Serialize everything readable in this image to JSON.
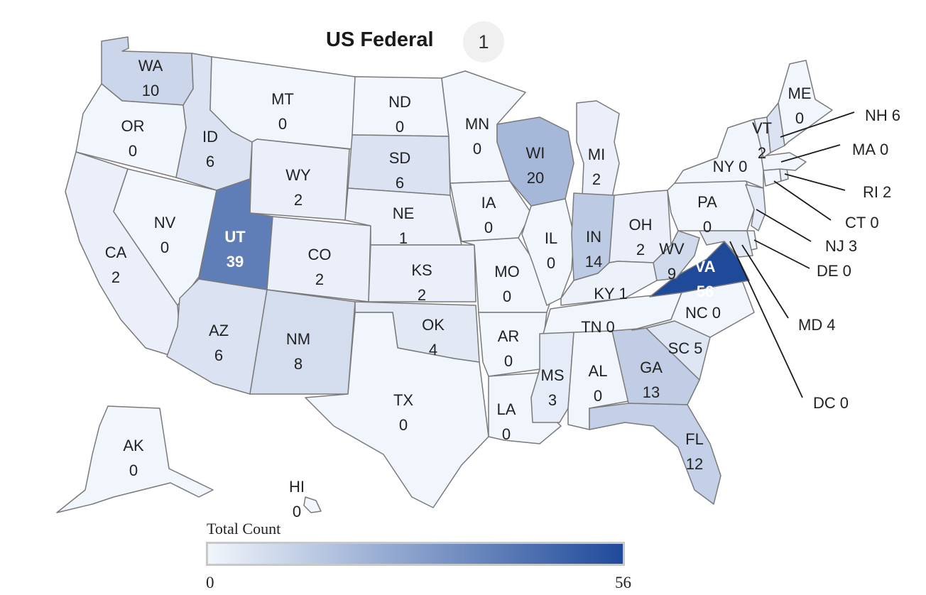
{
  "title": "US Federal",
  "badge": "1",
  "legend": {
    "title": "Total Count",
    "min": "0",
    "max": "56",
    "color_low": "#f1f5fc",
    "color_high": "#1f4a9a"
  },
  "states": [
    {
      "abbr": "WA",
      "value": "10"
    },
    {
      "abbr": "OR",
      "value": "0"
    },
    {
      "abbr": "CA",
      "value": "2"
    },
    {
      "abbr": "NV",
      "value": "0"
    },
    {
      "abbr": "ID",
      "value": "6"
    },
    {
      "abbr": "MT",
      "value": "0"
    },
    {
      "abbr": "WY",
      "value": "2"
    },
    {
      "abbr": "UT",
      "value": "39"
    },
    {
      "abbr": "AZ",
      "value": "6"
    },
    {
      "abbr": "CO",
      "value": "2"
    },
    {
      "abbr": "NM",
      "value": "8"
    },
    {
      "abbr": "ND",
      "value": "0"
    },
    {
      "abbr": "SD",
      "value": "6"
    },
    {
      "abbr": "NE",
      "value": "1"
    },
    {
      "abbr": "KS",
      "value": "2"
    },
    {
      "abbr": "OK",
      "value": "4"
    },
    {
      "abbr": "TX",
      "value": "0"
    },
    {
      "abbr": "MN",
      "value": "0"
    },
    {
      "abbr": "IA",
      "value": "0"
    },
    {
      "abbr": "MO",
      "value": "0"
    },
    {
      "abbr": "AR",
      "value": "0"
    },
    {
      "abbr": "LA",
      "value": "0"
    },
    {
      "abbr": "WI",
      "value": "20"
    },
    {
      "abbr": "IL",
      "value": "0"
    },
    {
      "abbr": "MI",
      "value": "2"
    },
    {
      "abbr": "IN",
      "value": "14"
    },
    {
      "abbr": "OH",
      "value": "2"
    },
    {
      "abbr": "KY",
      "value": "1"
    },
    {
      "abbr": "TN",
      "value": "0"
    },
    {
      "abbr": "MS",
      "value": "3"
    },
    {
      "abbr": "AL",
      "value": "0"
    },
    {
      "abbr": "GA",
      "value": "13"
    },
    {
      "abbr": "FL",
      "value": "12"
    },
    {
      "abbr": "SC",
      "value": "5"
    },
    {
      "abbr": "NC",
      "value": "0"
    },
    {
      "abbr": "VA",
      "value": "56"
    },
    {
      "abbr": "WV",
      "value": "9"
    },
    {
      "abbr": "PA",
      "value": "0"
    },
    {
      "abbr": "NY",
      "value": "0"
    },
    {
      "abbr": "VT",
      "value": "2"
    },
    {
      "abbr": "ME",
      "value": "0"
    },
    {
      "abbr": "NH",
      "value": "6"
    },
    {
      "abbr": "MA",
      "value": "0"
    },
    {
      "abbr": "RI",
      "value": "2"
    },
    {
      "abbr": "CT",
      "value": "0"
    },
    {
      "abbr": "NJ",
      "value": "3"
    },
    {
      "abbr": "DE",
      "value": "0"
    },
    {
      "abbr": "MD",
      "value": "4"
    },
    {
      "abbr": "DC",
      "value": "0"
    },
    {
      "abbr": "AK",
      "value": "0"
    },
    {
      "abbr": "HI",
      "value": "0"
    }
  ]
}
